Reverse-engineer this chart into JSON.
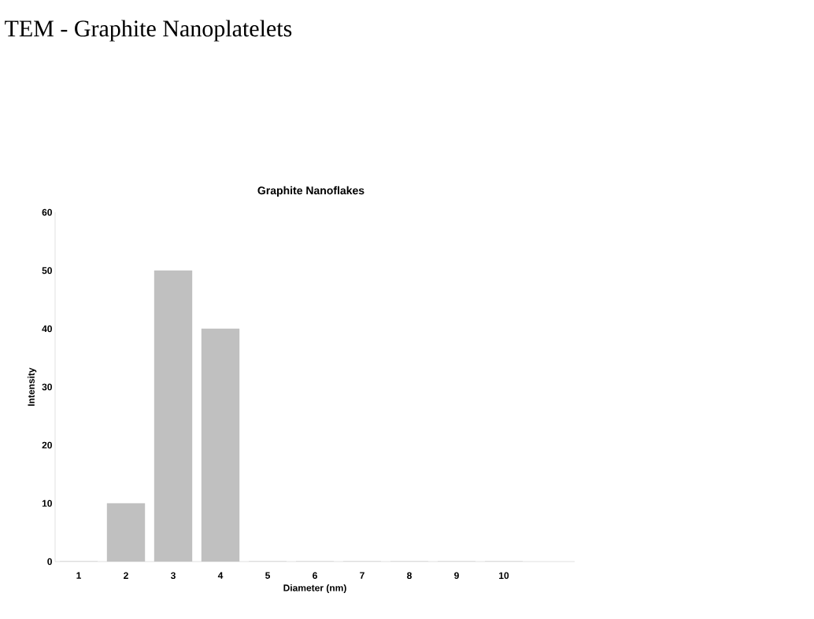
{
  "chart_data": {
    "type": "bar",
    "title": "TEM - Graphite Nanoplatelets",
    "subtitle": "Graphite Nanoflakes",
    "xlabel": "Diameter (nm)",
    "ylabel": "Intensity",
    "categories": [
      "1",
      "2",
      "3",
      "4",
      "5",
      "6",
      "7",
      "8",
      "9",
      "10"
    ],
    "values": [
      0,
      10,
      50,
      40,
      0,
      0,
      0,
      0,
      0,
      0
    ],
    "color": "#c0c0c0",
    "ylim": [
      0,
      60
    ],
    "yticks": [
      0,
      10,
      20,
      30,
      40,
      50,
      60
    ],
    "grid": false
  }
}
